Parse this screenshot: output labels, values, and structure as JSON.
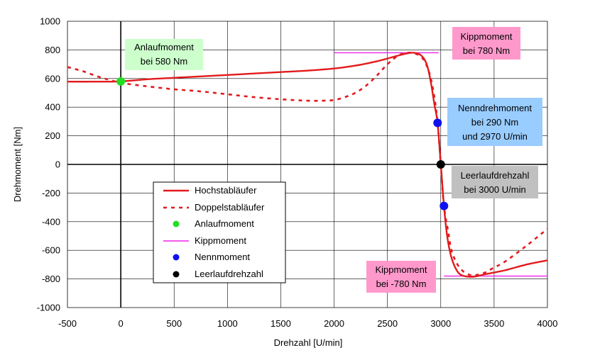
{
  "chart_data": {
    "type": "line",
    "xlabel": "Drehzahl [U/min]",
    "ylabel": "Drehmoment [Nm]",
    "xlim": [
      -500,
      4000
    ],
    "ylim": [
      -1000,
      1000
    ],
    "xticks": [
      -500,
      0,
      500,
      1000,
      1500,
      2000,
      2500,
      3000,
      3500,
      4000
    ],
    "yticks": [
      -1000,
      -800,
      -600,
      -400,
      -200,
      0,
      200,
      400,
      600,
      800,
      1000
    ],
    "xtick_labels": [
      "-500",
      "0",
      "500",
      "1000",
      "1500",
      "2000",
      "2500",
      "3000",
      "3500",
      "4000"
    ],
    "ytick_labels": [
      "-1000",
      "-800",
      "-600",
      "-400",
      "-200",
      "0",
      "200",
      "400",
      "600",
      "800",
      "1000"
    ],
    "grid": true,
    "series": [
      {
        "name": "Hochstabläufer",
        "style": "solid",
        "color": "#e31a1c",
        "x": [
          -500,
          -250,
          0,
          250,
          500,
          750,
          1000,
          1250,
          1500,
          1750,
          2000,
          2200,
          2400,
          2550,
          2650,
          2720,
          2770,
          2810,
          2850,
          2880,
          2910,
          2940,
          2970,
          3000,
          3030,
          3060,
          3100,
          3150,
          3200,
          3300,
          3400,
          3600,
          3800,
          4000
        ],
        "y": [
          578,
          578,
          580,
          595,
          605,
          615,
          625,
          635,
          645,
          655,
          670,
          690,
          720,
          750,
          770,
          780,
          777,
          765,
          730,
          670,
          560,
          420,
          290,
          0,
          -290,
          -500,
          -650,
          -740,
          -775,
          -785,
          -770,
          -740,
          -700,
          -670
        ]
      },
      {
        "name": "Doppelstabläufer",
        "style": "dashed",
        "color": "#e31a1c",
        "x": [
          -500,
          -350,
          -200,
          -100,
          0,
          250,
          500,
          750,
          1000,
          1250,
          1500,
          1750,
          1900,
          2000,
          2100,
          2200,
          2300,
          2400,
          2500,
          2600,
          2680,
          2750,
          2800,
          2850,
          2900,
          2940,
          2970,
          3000,
          3030,
          3070,
          3100,
          3150,
          3200,
          3250,
          3300,
          3400,
          3500,
          3600,
          3800,
          4000
        ],
        "y": [
          680,
          650,
          610,
          590,
          570,
          545,
          525,
          510,
          490,
          470,
          455,
          445,
          445,
          450,
          470,
          500,
          550,
          620,
          700,
          760,
          780,
          775,
          760,
          720,
          620,
          470,
          290,
          0,
          -290,
          -470,
          -600,
          -690,
          -740,
          -765,
          -775,
          -760,
          -720,
          -680,
          -570,
          -450
        ]
      }
    ],
    "points": [
      {
        "name": "Anlaufmoment",
        "x": 0,
        "y": 580,
        "color": "#22dd22"
      },
      {
        "name": "Nennmoment",
        "x": 2970,
        "y": 290,
        "color": "#1010ee"
      },
      {
        "name": "Nennmoment",
        "x": 3030,
        "y": -290,
        "color": "#1010ee"
      },
      {
        "name": "Leerlaufdrehzahl",
        "x": 3000,
        "y": 0,
        "color": "#000000"
      }
    ],
    "kippmoment_lines": [
      {
        "x1": 2000,
        "x2": 2980,
        "y": 780,
        "color": "#ee22ee"
      },
      {
        "x1": 3030,
        "x2": 4000,
        "y": -780,
        "color": "#ee22ee"
      }
    ],
    "legend": [
      {
        "label": "Hochstabläufer",
        "kind": "line-solid",
        "color": "#e31a1c"
      },
      {
        "label": "Doppelstabläufer",
        "kind": "line-dashed",
        "color": "#e31a1c"
      },
      {
        "label": "Anlaufmoment",
        "kind": "dot",
        "color": "#22dd22"
      },
      {
        "label": "Kippmoment",
        "kind": "line-thin",
        "color": "#ee22ee"
      },
      {
        "label": "Nennmoment",
        "kind": "dot",
        "color": "#1010ee"
      },
      {
        "label": "Leerlaufdrehzahl",
        "kind": "dot",
        "color": "#000000"
      }
    ],
    "annotations": [
      {
        "lines": [
          "Anlaufmoment",
          "bei 580 Nm"
        ],
        "color": "#ccffcc"
      },
      {
        "lines": [
          "Kippmoment",
          "bei 780 Nm"
        ],
        "color": "#ff99cc"
      },
      {
        "lines": [
          "Nenndrehmoment",
          "bei 290 Nm",
          "und 2970 U/min"
        ],
        "color": "#99ccff"
      },
      {
        "lines": [
          "Leerlaufdrehzahl",
          "bei 3000 U/min"
        ],
        "color": "#c0c0c0"
      },
      {
        "lines": [
          "Kippmoment",
          "bei -780 Nm"
        ],
        "color": "#ff99cc"
      }
    ]
  }
}
